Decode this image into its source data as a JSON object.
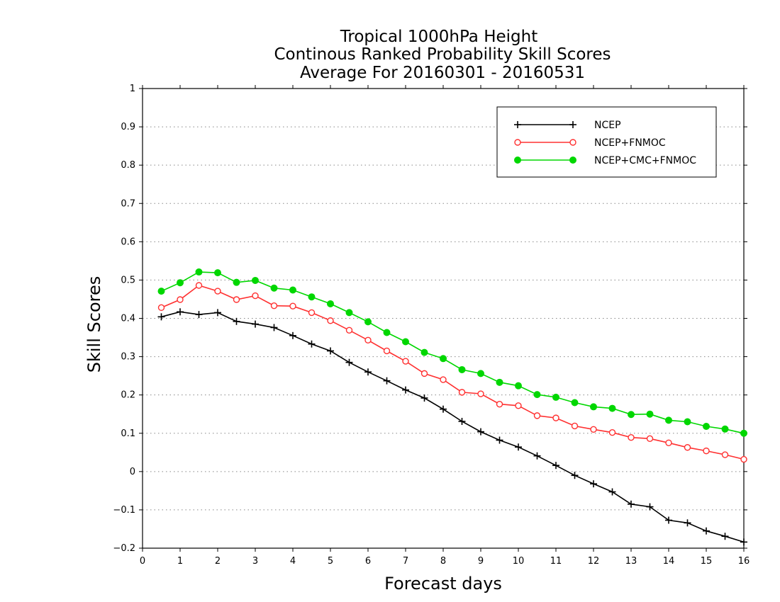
{
  "chart_data": {
    "type": "line",
    "title_lines": [
      "Tropical 1000hPa Height",
      "Continous Ranked Probability Skill Scores",
      "Average For 20160301 - 20160531"
    ],
    "xlabel": "Forecast days",
    "ylabel": "Skill Scores",
    "xlim": [
      0,
      16
    ],
    "ylim": [
      -0.2,
      1
    ],
    "x_ticks": [
      "0",
      "1",
      "2",
      "3",
      "4",
      "5",
      "6",
      "7",
      "8",
      "9",
      "10",
      "11",
      "12",
      "13",
      "14",
      "15",
      "16"
    ],
    "y_ticks": [
      "−0.2",
      "−0.1",
      "0",
      "0.1",
      "0.2",
      "0.3",
      "0.4",
      "0.5",
      "0.6",
      "0.7",
      "0.8",
      "0.9",
      "1"
    ],
    "grid": "horizontal dotted",
    "legend_position": "top-right",
    "x": [
      0.5,
      1,
      1.5,
      2,
      2.5,
      3,
      3.5,
      4,
      4.5,
      5,
      5.5,
      6,
      6.5,
      7,
      7.5,
      8,
      8.5,
      9,
      9.5,
      10,
      10.5,
      11,
      11.5,
      12,
      12.5,
      13,
      13.5,
      14,
      14.5,
      15,
      15.5,
      16
    ],
    "series": [
      {
        "name": "NCEP",
        "color": "#000000",
        "marker": "plus",
        "values": [
          0.404,
          0.417,
          0.41,
          0.415,
          0.392,
          0.385,
          0.376,
          0.355,
          0.333,
          0.315,
          0.285,
          0.26,
          0.237,
          0.213,
          0.192,
          0.163,
          0.131,
          0.104,
          0.082,
          0.064,
          0.041,
          0.016,
          -0.01,
          -0.032,
          -0.053,
          -0.085,
          -0.092,
          -0.127,
          -0.134,
          -0.155,
          -0.169,
          -0.184
        ]
      },
      {
        "name": "NCEP+FNMOC",
        "color": "#ff3030",
        "marker": "open-circle",
        "values": [
          0.428,
          0.449,
          0.486,
          0.471,
          0.449,
          0.459,
          0.433,
          0.432,
          0.415,
          0.394,
          0.369,
          0.343,
          0.315,
          0.288,
          0.256,
          0.24,
          0.207,
          0.203,
          0.176,
          0.172,
          0.146,
          0.14,
          0.119,
          0.11,
          0.102,
          0.089,
          0.086,
          0.075,
          0.063,
          0.054,
          0.044,
          0.032
        ]
      },
      {
        "name": "NCEP+CMC+FNMOC",
        "color": "#00d700",
        "marker": "filled-circle",
        "values": [
          0.471,
          0.493,
          0.521,
          0.519,
          0.494,
          0.499,
          0.479,
          0.474,
          0.456,
          0.438,
          0.415,
          0.391,
          0.363,
          0.339,
          0.311,
          0.295,
          0.266,
          0.256,
          0.233,
          0.224,
          0.201,
          0.194,
          0.18,
          0.169,
          0.165,
          0.149,
          0.15,
          0.134,
          0.13,
          0.118,
          0.111,
          0.1
        ]
      }
    ]
  }
}
